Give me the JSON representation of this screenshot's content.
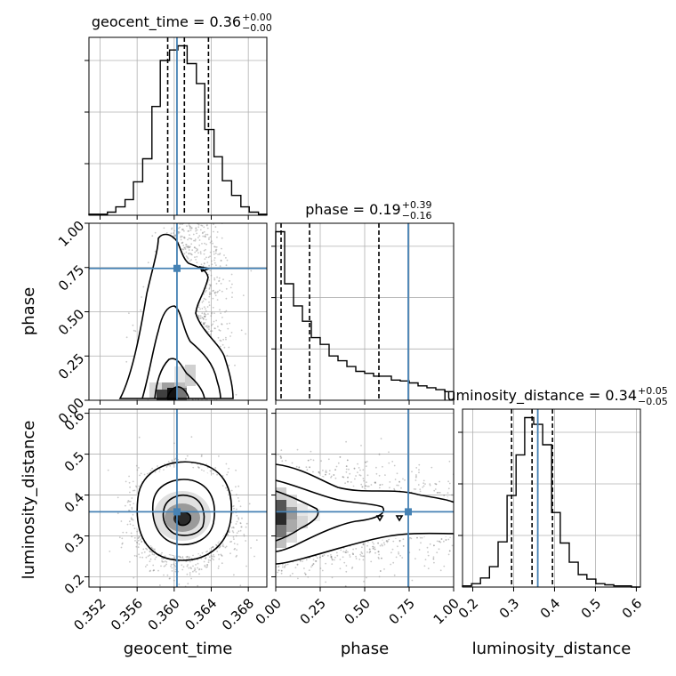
{
  "chart_data": {
    "type": "corner",
    "parameters": [
      "geocent_time",
      "phase",
      "luminosity_distance"
    ],
    "truths": {
      "geocent_time": 0.3603,
      "phase": 0.745,
      "luminosity_distance": 0.359
    },
    "colors": {
      "truth": "#4682b4",
      "hist": "#000000",
      "grid": "#b0b0b0",
      "quantile": "#000000"
    },
    "grid": true,
    "titles": {
      "geocent_time": {
        "label": "geocent_time = 0.36",
        "sup": "+0.00",
        "sub": "−0.00"
      },
      "phase": {
        "label": "phase = 0.19",
        "sup": "+0.39",
        "sub": "−0.16"
      },
      "luminosity_distance": {
        "label": "luminosity_distance = 0.34",
        "sup": "+0.05",
        "sub": "−0.05"
      }
    },
    "axis_labels": {
      "geocent_time": "geocent_time",
      "phase": "phase",
      "luminosity_distance": "luminosity_distance"
    },
    "ranges": {
      "geocent_time": [
        0.3508,
        0.37
      ],
      "phase": [
        0.0,
        1.0
      ],
      "luminosity_distance": [
        0.175,
        0.61
      ]
    },
    "ticks": {
      "geocent_time": [
        "0.352",
        "0.356",
        "0.360",
        "0.364",
        "0.368"
      ],
      "phase": [
        "0.00",
        "0.25",
        "0.50",
        "0.75",
        "1.00"
      ],
      "luminosity_distance": [
        "0.2",
        "0.3",
        "0.4",
        "0.5",
        "0.6"
      ]
    },
    "quantiles": {
      "geocent_time": [
        0.3593,
        0.3611,
        0.3637
      ],
      "phase": [
        0.03,
        0.19,
        0.58
      ],
      "luminosity_distance": [
        0.295,
        0.345,
        0.395
      ]
    },
    "histograms": {
      "geocent_time": {
        "edges": [
          0.3508,
          0.3518,
          0.3528,
          0.3537,
          0.3547,
          0.3556,
          0.3566,
          0.3576,
          0.3585,
          0.3595,
          0.3604,
          0.3614,
          0.3624,
          0.3633,
          0.3643,
          0.3652,
          0.3662,
          0.3672,
          0.3681,
          0.3691,
          0.37
        ],
        "counts": [
          1,
          1,
          3,
          8,
          15,
          32,
          54,
          104,
          148,
          158,
          162,
          145,
          126,
          82,
          56,
          33,
          19,
          8,
          3,
          1
        ]
      },
      "phase": {
        "edges": [
          0.0,
          0.05,
          0.1,
          0.15,
          0.2,
          0.25,
          0.3,
          0.35,
          0.4,
          0.45,
          0.5,
          0.55,
          0.6,
          0.65,
          0.7,
          0.75,
          0.8,
          0.85,
          0.9,
          0.95,
          1.0
        ],
        "counts": [
          175,
          121,
          98,
          82,
          65,
          58,
          46,
          41,
          35,
          30,
          28,
          25,
          25,
          21,
          20,
          18,
          15,
          13,
          11,
          9
        ]
      },
      "luminosity_distance": {
        "edges": [
          0.175,
          0.197,
          0.219,
          0.241,
          0.262,
          0.284,
          0.306,
          0.327,
          0.349,
          0.371,
          0.393,
          0.414,
          0.436,
          0.458,
          0.479,
          0.501,
          0.523,
          0.545,
          0.566,
          0.588,
          0.61
        ],
        "counts": [
          1,
          3,
          8,
          18,
          40,
          81,
          117,
          150,
          144,
          126,
          66,
          39,
          22,
          11,
          7,
          3,
          2,
          1,
          1,
          0
        ]
      }
    }
  }
}
